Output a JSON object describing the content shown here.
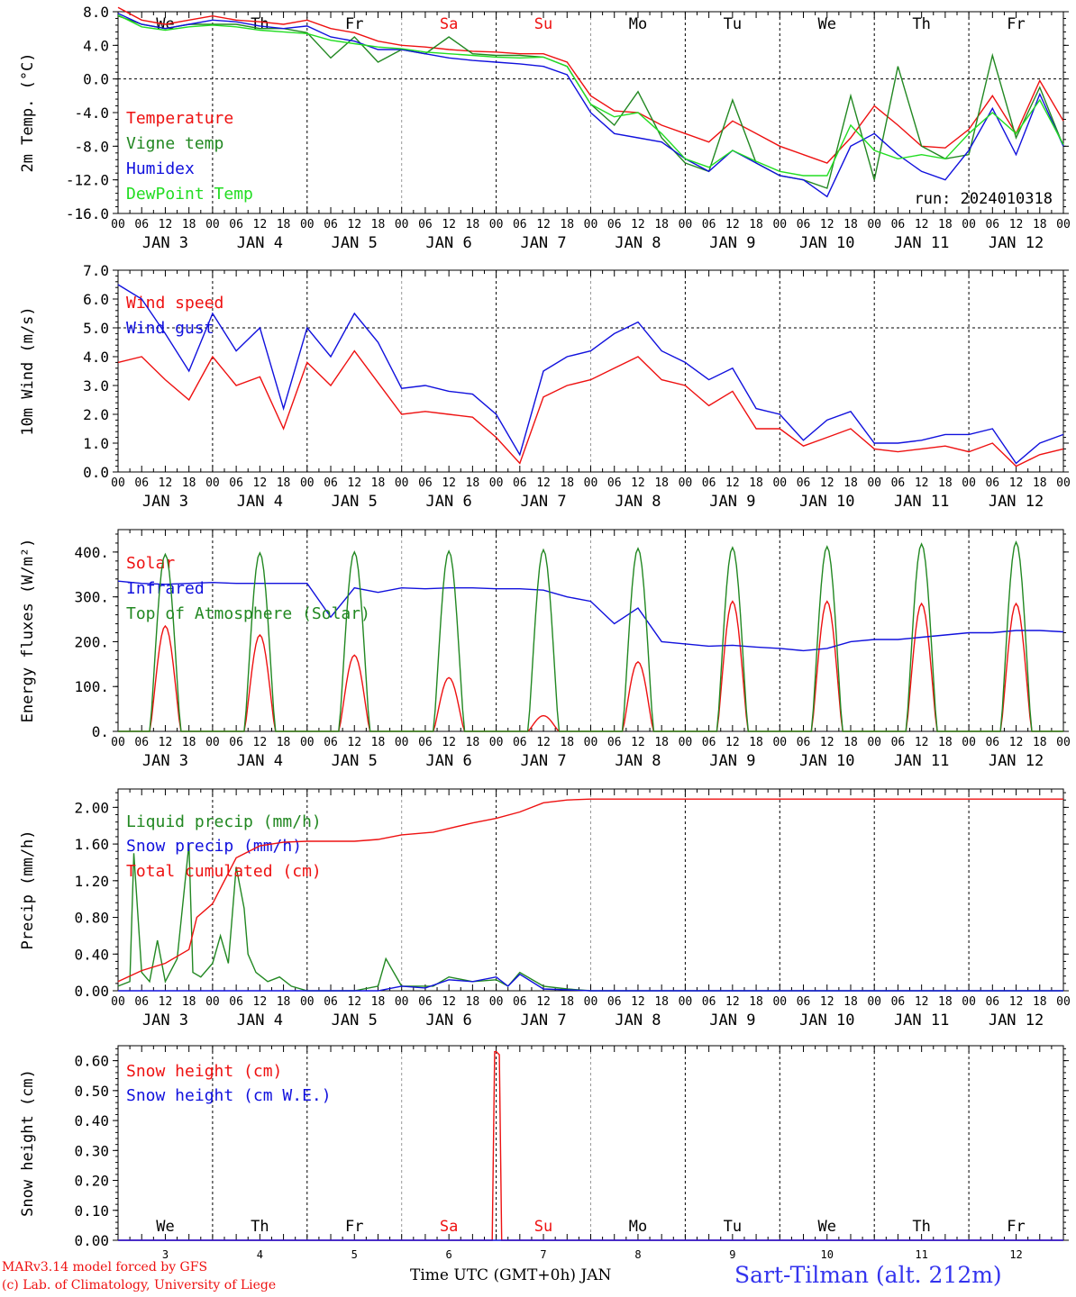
{
  "page": {
    "credit_line1": "MARv3.14 model forced by GFS",
    "credit_line2": "(c) Lab. of Climatology, University of Liege",
    "xaxis_label": "Time UTC (GMT+0h) JAN",
    "station": "Sart-Tilman (alt. 212m)",
    "run_label": "run: 2024010318"
  },
  "colors": {
    "red": "#ee1111",
    "dark_green": "#228822",
    "blue": "#1111dd",
    "light_green": "#22dd22",
    "weekend": "#ee1111",
    "weekday": "#000000"
  },
  "chart_data": [
    {
      "type": "line",
      "ylabel": "2m Temp. (°C)",
      "ylim": [
        -16,
        8
      ],
      "yticks": [
        "8.0",
        "4.0",
        "0.0",
        "-4.0",
        "-8.0",
        "-12.0",
        "-16.0"
      ],
      "ytick_values": [
        8,
        4,
        0,
        -4,
        -8,
        -12,
        -16
      ],
      "reference_line": 0,
      "xlim": [
        0,
        240
      ],
      "x_unit": "hours since 00 UTC JAN 3",
      "days": [
        "We",
        "Th",
        "Fr",
        "Sa",
        "Su",
        "Mo",
        "Tu",
        "We",
        "Th",
        "Fr"
      ],
      "weekend_days": [
        "Sa",
        "Su"
      ],
      "date_labels": [
        "JAN 3",
        "JAN 4",
        "JAN 5",
        "JAN 6",
        "JAN 7",
        "JAN 8",
        "JAN 9",
        "JAN 10",
        "JAN 11",
        "JAN 12"
      ],
      "hour_labels": [
        "00",
        "06",
        "12",
        "18"
      ],
      "series": [
        {
          "name": "Temperature",
          "color": "#ee1111",
          "x": [
            0,
            6,
            12,
            18,
            24,
            30,
            36,
            42,
            48,
            54,
            60,
            66,
            72,
            78,
            84,
            90,
            96,
            102,
            108,
            114,
            120,
            126,
            132,
            138,
            144,
            150,
            156,
            162,
            168,
            174,
            180,
            186,
            192,
            198,
            204,
            210,
            216,
            222,
            228,
            234,
            240
          ],
          "y": [
            8.5,
            7.0,
            6.5,
            7.0,
            7.5,
            7.0,
            6.8,
            6.5,
            7.0,
            6.0,
            5.5,
            4.5,
            4.0,
            3.8,
            3.5,
            3.3,
            3.2,
            3.0,
            3.0,
            2.0,
            -2.0,
            -3.8,
            -4.0,
            -5.5,
            -6.5,
            -7.5,
            -5.0,
            -6.5,
            -8.0,
            -9.0,
            -10.0,
            -7.0,
            -3.2,
            -5.5,
            -8.0,
            -8.2,
            -6.0,
            -2.0,
            -6.5,
            -0.2,
            -5.0
          ]
        },
        {
          "name": "Vigne temp",
          "color": "#228822",
          "x": [
            0,
            6,
            12,
            18,
            24,
            30,
            36,
            42,
            48,
            54,
            60,
            66,
            72,
            78,
            84,
            90,
            96,
            102,
            108,
            114,
            120,
            126,
            132,
            138,
            144,
            150,
            156,
            162,
            168,
            174,
            180,
            186,
            192,
            198,
            204,
            210,
            216,
            222,
            228,
            234,
            240
          ],
          "y": [
            7.5,
            6.5,
            6.0,
            6.5,
            6.5,
            6.5,
            6.0,
            6.0,
            5.5,
            2.5,
            5.0,
            2.0,
            3.5,
            3.0,
            5.0,
            3.0,
            2.8,
            2.8,
            2.6,
            1.5,
            -3.0,
            -5.5,
            -1.5,
            -7.0,
            -10.0,
            -11.0,
            -2.5,
            -10.0,
            -11.5,
            -12.0,
            -13.0,
            -2.0,
            -12.0,
            1.5,
            -8.0,
            -9.5,
            -9.0,
            2.8,
            -7.0,
            -1.0,
            -8.0
          ]
        },
        {
          "name": "Humidex",
          "color": "#1111dd",
          "x": [
            0,
            6,
            12,
            18,
            24,
            30,
            36,
            42,
            48,
            54,
            60,
            66,
            72,
            78,
            84,
            90,
            96,
            102,
            108,
            114,
            120,
            126,
            132,
            138,
            144,
            150,
            156,
            162,
            168,
            174,
            180,
            186,
            192,
            198,
            204,
            210,
            216,
            222,
            228,
            234,
            240
          ],
          "y": [
            7.8,
            6.5,
            6.0,
            6.5,
            7.0,
            6.8,
            6.3,
            6.0,
            6.3,
            5.0,
            4.5,
            3.5,
            3.5,
            3.0,
            2.5,
            2.2,
            2.0,
            1.8,
            1.5,
            0.5,
            -4.0,
            -6.5,
            -7.0,
            -7.5,
            -9.5,
            -11.0,
            -8.5,
            -10.0,
            -11.5,
            -12.0,
            -14.0,
            -8.0,
            -6.5,
            -9.0,
            -11.0,
            -12.0,
            -8.5,
            -3.5,
            -9.0,
            -1.8,
            -8.0
          ]
        },
        {
          "name": "DewPoint Temp",
          "color": "#22dd22",
          "x": [
            0,
            6,
            12,
            18,
            24,
            30,
            36,
            42,
            48,
            54,
            60,
            66,
            72,
            78,
            84,
            90,
            96,
            102,
            108,
            114,
            120,
            126,
            132,
            138,
            144,
            150,
            156,
            162,
            168,
            174,
            180,
            186,
            192,
            198,
            204,
            210,
            216,
            222,
            228,
            234,
            240
          ],
          "y": [
            7.6,
            6.2,
            5.8,
            6.2,
            6.4,
            6.2,
            5.8,
            5.6,
            5.4,
            4.6,
            4.2,
            3.8,
            3.6,
            3.2,
            3.0,
            2.8,
            2.6,
            2.5,
            2.6,
            1.5,
            -3.0,
            -4.5,
            -4.0,
            -6.5,
            -9.5,
            -10.5,
            -8.5,
            -9.8,
            -11.0,
            -11.5,
            -11.5,
            -5.5,
            -8.5,
            -9.5,
            -9.0,
            -9.5,
            -6.5,
            -4.0,
            -6.5,
            -2.5,
            -7.8
          ]
        }
      ]
    },
    {
      "type": "line",
      "ylabel": "10m Wind (m/s)",
      "ylim": [
        0,
        7
      ],
      "yticks": [
        "7.0",
        "6.0",
        "5.0",
        "4.0",
        "3.0",
        "2.0",
        "1.0",
        "0.0"
      ],
      "ytick_values": [
        7,
        6,
        5,
        4,
        3,
        2,
        1,
        0
      ],
      "reference_line": 5,
      "xlim": [
        0,
        240
      ],
      "date_labels": [
        "JAN 3",
        "JAN 4",
        "JAN 5",
        "JAN 6",
        "JAN 7",
        "JAN 8",
        "JAN 9",
        "JAN 10",
        "JAN 11",
        "JAN 12"
      ],
      "hour_labels": [
        "00",
        "06",
        "12",
        "18"
      ],
      "series": [
        {
          "name": "Wind speed",
          "color": "#ee1111",
          "x": [
            0,
            6,
            12,
            18,
            24,
            30,
            36,
            42,
            48,
            54,
            60,
            66,
            72,
            78,
            84,
            90,
            96,
            102,
            108,
            114,
            120,
            126,
            132,
            138,
            144,
            150,
            156,
            162,
            168,
            174,
            180,
            186,
            192,
            198,
            204,
            210,
            216,
            222,
            228,
            234,
            240
          ],
          "y": [
            3.8,
            4.0,
            3.2,
            2.5,
            4.0,
            3.0,
            3.3,
            1.5,
            3.8,
            3.0,
            4.2,
            3.1,
            2.0,
            2.1,
            2.0,
            1.9,
            1.2,
            0.3,
            2.6,
            3.0,
            3.2,
            3.6,
            4.0,
            3.2,
            3.0,
            2.3,
            2.8,
            1.5,
            1.5,
            0.9,
            1.2,
            1.5,
            0.8,
            0.7,
            0.8,
            0.9,
            0.7,
            1.0,
            0.2,
            0.6,
            0.8
          ]
        },
        {
          "name": "Wind gust",
          "color": "#1111dd",
          "x": [
            0,
            6,
            12,
            18,
            24,
            30,
            36,
            42,
            48,
            54,
            60,
            66,
            72,
            78,
            84,
            90,
            96,
            102,
            108,
            114,
            120,
            126,
            132,
            138,
            144,
            150,
            156,
            162,
            168,
            174,
            180,
            186,
            192,
            198,
            204,
            210,
            216,
            222,
            228,
            234,
            240
          ],
          "y": [
            6.5,
            6.0,
            4.8,
            3.5,
            5.5,
            4.2,
            5.0,
            2.2,
            5.0,
            4.0,
            5.5,
            4.5,
            2.9,
            3.0,
            2.8,
            2.7,
            2.0,
            0.6,
            3.5,
            4.0,
            4.2,
            4.8,
            5.2,
            4.2,
            3.8,
            3.2,
            3.6,
            2.2,
            2.0,
            1.1,
            1.8,
            2.1,
            1.0,
            1.0,
            1.1,
            1.3,
            1.3,
            1.5,
            0.3,
            1.0,
            1.3
          ]
        }
      ]
    },
    {
      "type": "line",
      "ylabel": "Energy fluxes (W/m²)",
      "ylim": [
        0,
        450
      ],
      "yticks": [
        "400.",
        "300.",
        "200.",
        "100.",
        "0."
      ],
      "ytick_values": [
        400,
        300,
        200,
        100,
        0
      ],
      "xlim": [
        0,
        240
      ],
      "date_labels": [
        "JAN 3",
        "JAN 4",
        "JAN 5",
        "JAN 6",
        "JAN 7",
        "JAN 8",
        "JAN 9",
        "JAN 10",
        "JAN 11",
        "JAN 12"
      ],
      "hour_labels": [
        "00",
        "06",
        "12",
        "18"
      ],
      "series": [
        {
          "name": "Solar",
          "color": "#ee1111",
          "diurnal": true,
          "rise_hour": 8,
          "set_hour": 16,
          "peaks": [
            235,
            215,
            170,
            120,
            35,
            155,
            290,
            290,
            285,
            285
          ]
        },
        {
          "name": "Infrared",
          "color": "#1111dd",
          "x": [
            0,
            6,
            12,
            18,
            24,
            30,
            36,
            42,
            48,
            54,
            60,
            66,
            72,
            78,
            84,
            90,
            96,
            102,
            108,
            114,
            120,
            126,
            132,
            138,
            144,
            150,
            156,
            162,
            168,
            174,
            180,
            186,
            192,
            198,
            204,
            210,
            216,
            222,
            228,
            234,
            240
          ],
          "y": [
            335,
            330,
            328,
            330,
            332,
            330,
            330,
            330,
            330,
            255,
            320,
            310,
            320,
            318,
            320,
            320,
            318,
            318,
            315,
            300,
            290,
            240,
            275,
            200,
            195,
            190,
            192,
            188,
            185,
            180,
            185,
            200,
            205,
            205,
            210,
            215,
            220,
            220,
            225,
            225,
            222
          ]
        },
        {
          "name": "Top of Atmosphere (Solar)",
          "color": "#228822",
          "diurnal": true,
          "rise_hour": 8,
          "set_hour": 16,
          "peaks": [
            395,
            398,
            400,
            402,
            405,
            408,
            410,
            412,
            418,
            422
          ]
        }
      ]
    },
    {
      "type": "line",
      "ylabel": "Precip (mm/h)",
      "ylim": [
        0,
        2.2
      ],
      "yticks": [
        "2.00",
        "1.60",
        "1.20",
        "0.80",
        "0.40",
        "0.00"
      ],
      "ytick_values": [
        2.0,
        1.6,
        1.2,
        0.8,
        0.4,
        0.0
      ],
      "xlim": [
        0,
        240
      ],
      "date_labels": [
        "JAN 3",
        "JAN 4",
        "JAN 5",
        "JAN 6",
        "JAN 7",
        "JAN 8",
        "JAN 9",
        "JAN 10",
        "JAN 11",
        "JAN 12"
      ],
      "hour_labels": [
        "00",
        "06",
        "12",
        "18"
      ],
      "series": [
        {
          "name": "Liquid precip (mm/h)",
          "color": "#228822",
          "x": [
            0,
            3,
            4,
            6,
            8,
            10,
            12,
            15,
            18,
            19,
            21,
            24,
            26,
            28,
            30,
            32,
            33,
            35,
            38,
            41,
            44,
            48,
            60,
            66,
            68,
            72,
            80,
            84,
            90,
            96,
            99,
            102,
            108,
            114,
            120,
            240
          ],
          "y": [
            0.05,
            0.1,
            1.5,
            0.2,
            0.1,
            0.55,
            0.1,
            0.35,
            1.6,
            0.2,
            0.15,
            0.3,
            0.6,
            0.3,
            1.35,
            0.9,
            0.4,
            0.2,
            0.1,
            0.15,
            0.05,
            0.0,
            0.0,
            0.05,
            0.35,
            0.05,
            0.05,
            0.15,
            0.1,
            0.12,
            0.05,
            0.2,
            0.05,
            0.02,
            0.0,
            0.0
          ]
        },
        {
          "name": "Snow precip (mm/h)",
          "color": "#1111dd",
          "x": [
            0,
            66,
            72,
            78,
            84,
            90,
            96,
            99,
            102,
            108,
            120,
            240
          ],
          "y": [
            0,
            0,
            0.05,
            0.03,
            0.12,
            0.1,
            0.15,
            0.05,
            0.18,
            0.02,
            0.0,
            0.0
          ]
        },
        {
          "name": "Total cumulated (cm)",
          "color": "#ee1111",
          "x": [
            0,
            6,
            12,
            18,
            20,
            24,
            30,
            36,
            42,
            48,
            60,
            66,
            72,
            80,
            84,
            90,
            96,
            102,
            108,
            114,
            120,
            240
          ],
          "y": [
            0.1,
            0.22,
            0.3,
            0.45,
            0.8,
            0.95,
            1.45,
            1.58,
            1.62,
            1.63,
            1.63,
            1.65,
            1.7,
            1.73,
            1.77,
            1.83,
            1.88,
            1.95,
            2.05,
            2.08,
            2.09,
            2.09
          ]
        }
      ]
    },
    {
      "type": "line",
      "ylabel": "Snow height (cm)",
      "ylim": [
        0,
        0.65
      ],
      "yticks": [
        "0.60",
        "0.50",
        "0.40",
        "0.30",
        "0.20",
        "0.10",
        "0.00"
      ],
      "ytick_values": [
        0.6,
        0.5,
        0.4,
        0.3,
        0.2,
        0.1,
        0.0
      ],
      "xlim": [
        0,
        240
      ],
      "days": [
        "We",
        "Th",
        "Fr",
        "Sa",
        "Su",
        "Mo",
        "Tu",
        "We",
        "Th",
        "Fr"
      ],
      "day_numbers": [
        "3",
        "4",
        "5",
        "6",
        "7",
        "8",
        "9",
        "10",
        "11",
        "12"
      ],
      "series": [
        {
          "name": "Snow height (cm)",
          "color": "#ee1111",
          "x": [
            0,
            95,
            95.6,
            96,
            96.8,
            97.4,
            240
          ],
          "y": [
            0,
            0,
            0.63,
            0.63,
            0.62,
            0,
            0
          ]
        },
        {
          "name": "Snow height (cm W.E.)",
          "color": "#1111dd",
          "x": [
            0,
            240
          ],
          "y": [
            0,
            0
          ]
        }
      ]
    }
  ]
}
